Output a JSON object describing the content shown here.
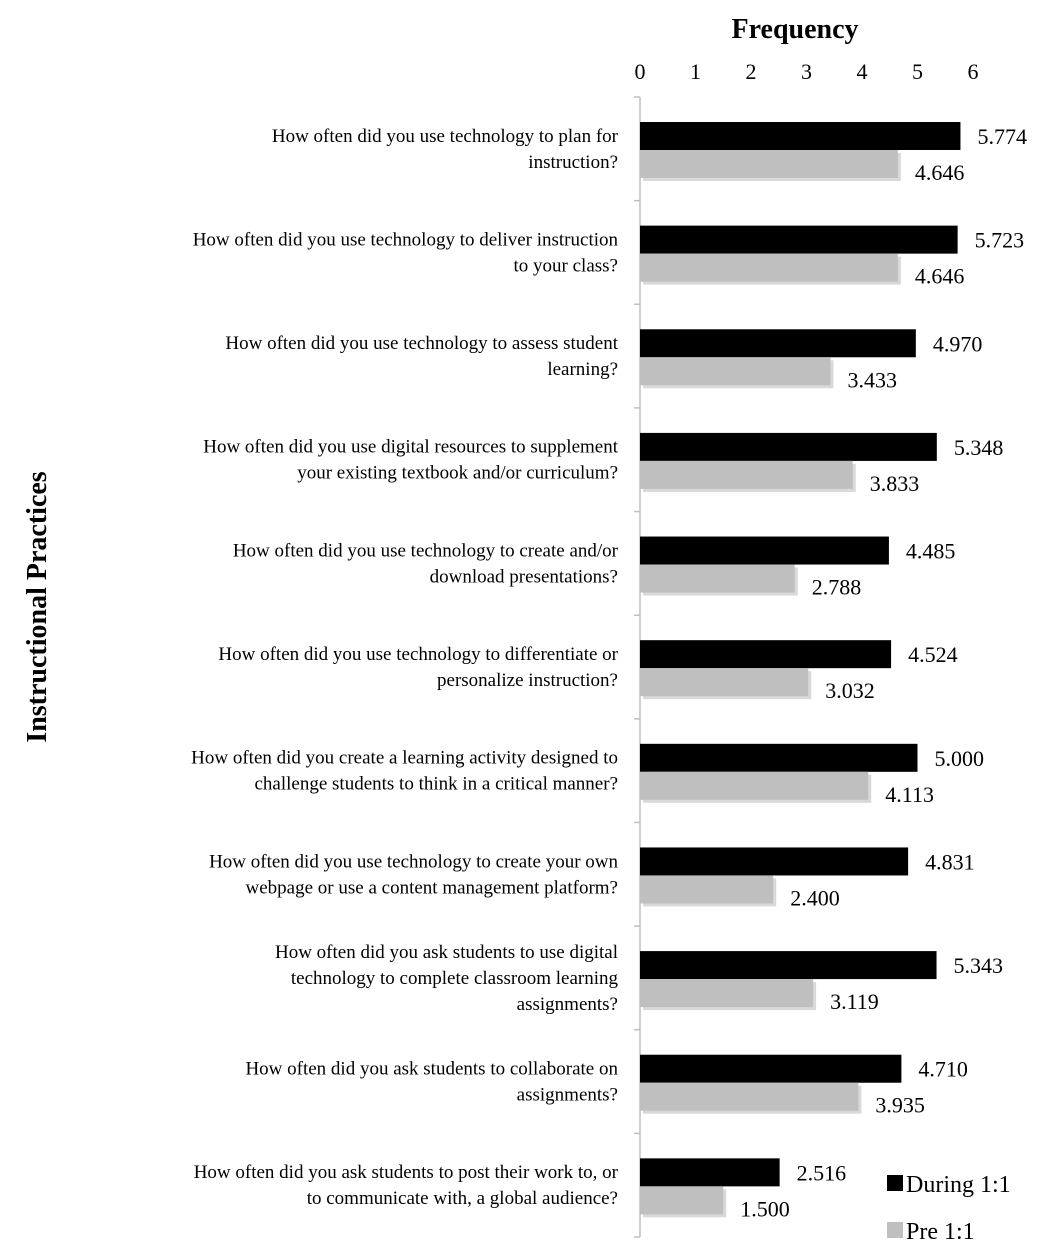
{
  "chart_data": {
    "type": "bar",
    "orientation": "horizontal",
    "title": "",
    "xlabel": "Frequency",
    "ylabel": "Instructional Practices",
    "xlim": [
      0,
      6
    ],
    "x_ticks": [
      "0",
      "1",
      "2",
      "3",
      "4",
      "5",
      "6"
    ],
    "grid": false,
    "legend_position": "bottom-right",
    "categories": [
      [
        "How often did you use technology to plan for",
        "instruction?"
      ],
      [
        "How often did you use technology to deliver instruction",
        "to your class?"
      ],
      [
        "How often did you use technology to assess student",
        "learning?"
      ],
      [
        "How often did you use digital resources to supplement",
        "your existing textbook and/or curriculum?"
      ],
      [
        "How often did you use technology to create and/or",
        "download presentations?"
      ],
      [
        "How often did you use technology to differentiate or",
        "personalize instruction?"
      ],
      [
        "How often did you create a learning activity designed to",
        "challenge students to think in a critical manner?"
      ],
      [
        "How often did you use technology to create your own",
        "webpage or use a content management platform?"
      ],
      [
        "How often did you ask students to use digital",
        "technology to complete classroom learning",
        "assignments?"
      ],
      [
        "How often did you ask students to collaborate on",
        "assignments?"
      ],
      [
        "How often did you ask students to post their work to, or",
        "to communicate with, a global audience?"
      ]
    ],
    "series": [
      {
        "name": "During 1:1",
        "color": "#000000",
        "values": [
          5.774,
          5.723,
          4.97,
          5.348,
          4.485,
          4.524,
          5.0,
          4.831,
          5.343,
          4.71,
          2.516
        ],
        "labels": [
          "5.774",
          "5.723",
          "4.970",
          "5.348",
          "4.485",
          "4.524",
          "5.000",
          "4.831",
          "5.343",
          "4.710",
          "2.516"
        ]
      },
      {
        "name": "Pre 1:1",
        "color": "#bfbfbf",
        "values": [
          4.646,
          4.646,
          3.433,
          3.833,
          2.788,
          3.032,
          4.113,
          2.4,
          3.119,
          3.935,
          1.5
        ],
        "labels": [
          "4.646",
          "4.646",
          "3.433",
          "3.833",
          "2.788",
          "3.032",
          "4.113",
          "2.400",
          "3.119",
          "3.935",
          "1.500"
        ]
      }
    ]
  }
}
